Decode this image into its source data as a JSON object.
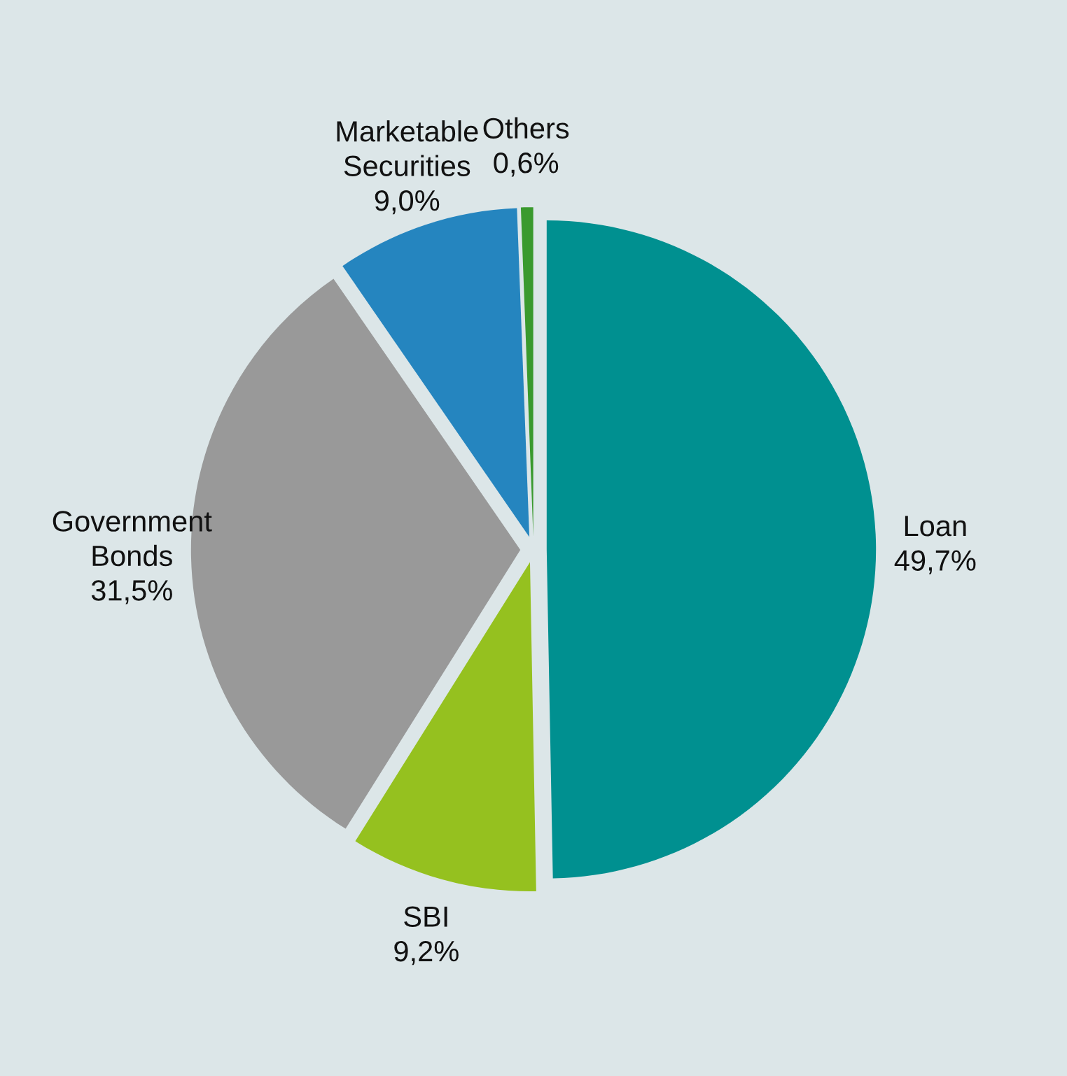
{
  "chart_data": {
    "type": "pie",
    "categories": [
      "Loan",
      "SBI",
      "Government Bonds",
      "Marketable Securities",
      "Others"
    ],
    "values": [
      49.7,
      9.2,
      31.5,
      9.0,
      0.6
    ],
    "colors": [
      "#009090",
      "#95c11f",
      "#999999",
      "#2585bf",
      "#3a9a2e"
    ],
    "value_labels": [
      "49,7%",
      "9,2%",
      "31,5%",
      "9,0%",
      "0,6%"
    ]
  }
}
